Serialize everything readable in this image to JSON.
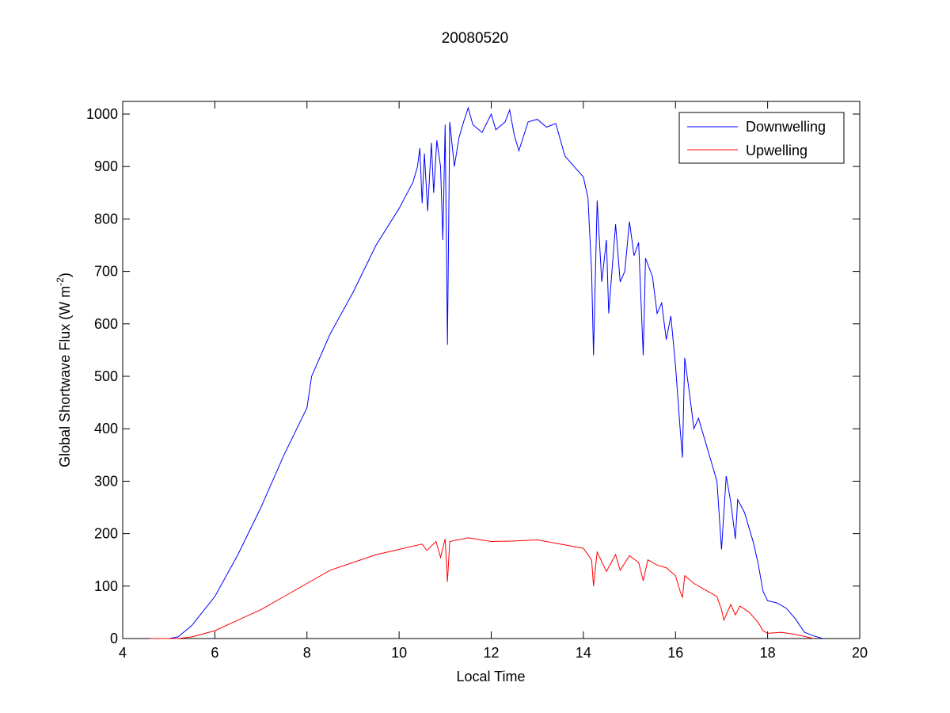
{
  "chart_data": {
    "type": "line",
    "title": "20080520",
    "xlabel": "Local Time",
    "ylabel": "Global Shortwave Flux (W m",
    "ylabel_sup": "-2",
    "ylabel_end": ")",
    "xlim": [
      4,
      20
    ],
    "ylim": [
      0,
      1020
    ],
    "xticks": [
      4,
      6,
      8,
      10,
      12,
      14,
      16,
      18,
      20
    ],
    "yticks": [
      0,
      100,
      200,
      300,
      400,
      500,
      600,
      700,
      800,
      900,
      1000
    ],
    "grid": false,
    "legend_position": "top-right",
    "series": [
      {
        "name": "Downwelling",
        "color": "#0000ff",
        "points": [
          [
            4.6,
            0
          ],
          [
            5.0,
            0
          ],
          [
            5.2,
            3
          ],
          [
            5.5,
            25
          ],
          [
            6.0,
            80
          ],
          [
            6.5,
            160
          ],
          [
            7.0,
            250
          ],
          [
            7.5,
            350
          ],
          [
            8.0,
            440
          ],
          [
            8.1,
            500
          ],
          [
            8.2,
            520
          ],
          [
            8.5,
            580
          ],
          [
            9.0,
            660
          ],
          [
            9.5,
            750
          ],
          [
            10.0,
            820
          ],
          [
            10.3,
            870
          ],
          [
            10.4,
            900
          ],
          [
            10.45,
            935
          ],
          [
            10.5,
            830
          ],
          [
            10.55,
            925
          ],
          [
            10.62,
            815
          ],
          [
            10.7,
            945
          ],
          [
            10.75,
            850
          ],
          [
            10.82,
            950
          ],
          [
            10.9,
            900
          ],
          [
            10.95,
            760
          ],
          [
            11.0,
            980
          ],
          [
            11.05,
            560
          ],
          [
            11.1,
            985
          ],
          [
            11.2,
            900
          ],
          [
            11.3,
            955
          ],
          [
            11.4,
            985
          ],
          [
            11.5,
            1012
          ],
          [
            11.6,
            980
          ],
          [
            11.8,
            965
          ],
          [
            12.0,
            1000
          ],
          [
            12.1,
            970
          ],
          [
            12.3,
            985
          ],
          [
            12.4,
            1008
          ],
          [
            12.5,
            960
          ],
          [
            12.6,
            930
          ],
          [
            12.8,
            985
          ],
          [
            13.0,
            990
          ],
          [
            13.2,
            975
          ],
          [
            13.4,
            982
          ],
          [
            13.6,
            920
          ],
          [
            13.8,
            900
          ],
          [
            14.0,
            880
          ],
          [
            14.1,
            840
          ],
          [
            14.18,
            700
          ],
          [
            14.22,
            540
          ],
          [
            14.3,
            835
          ],
          [
            14.4,
            680
          ],
          [
            14.5,
            760
          ],
          [
            14.55,
            620
          ],
          [
            14.7,
            790
          ],
          [
            14.8,
            680
          ],
          [
            14.9,
            700
          ],
          [
            15.0,
            795
          ],
          [
            15.1,
            730
          ],
          [
            15.2,
            755
          ],
          [
            15.3,
            540
          ],
          [
            15.35,
            725
          ],
          [
            15.5,
            690
          ],
          [
            15.6,
            620
          ],
          [
            15.7,
            640
          ],
          [
            15.8,
            570
          ],
          [
            15.9,
            615
          ],
          [
            16.0,
            520
          ],
          [
            16.1,
            400
          ],
          [
            16.15,
            345
          ],
          [
            16.2,
            535
          ],
          [
            16.3,
            470
          ],
          [
            16.4,
            400
          ],
          [
            16.5,
            420
          ],
          [
            16.7,
            360
          ],
          [
            16.8,
            330
          ],
          [
            16.9,
            300
          ],
          [
            17.0,
            170
          ],
          [
            17.1,
            310
          ],
          [
            17.2,
            260
          ],
          [
            17.3,
            190
          ],
          [
            17.35,
            265
          ],
          [
            17.5,
            240
          ],
          [
            17.7,
            180
          ],
          [
            17.8,
            140
          ],
          [
            17.9,
            90
          ],
          [
            18.0,
            72
          ],
          [
            18.2,
            68
          ],
          [
            18.4,
            58
          ],
          [
            18.6,
            38
          ],
          [
            18.8,
            12
          ],
          [
            19.0,
            5
          ],
          [
            19.2,
            0
          ]
        ]
      },
      {
        "name": "Upwelling",
        "color": "#ff0000",
        "points": [
          [
            4.6,
            0
          ],
          [
            5.2,
            0
          ],
          [
            5.5,
            3
          ],
          [
            6.0,
            15
          ],
          [
            6.5,
            35
          ],
          [
            7.0,
            55
          ],
          [
            7.5,
            80
          ],
          [
            8.0,
            105
          ],
          [
            8.5,
            130
          ],
          [
            9.0,
            145
          ],
          [
            9.5,
            160
          ],
          [
            10.0,
            170
          ],
          [
            10.5,
            180
          ],
          [
            10.6,
            168
          ],
          [
            10.8,
            185
          ],
          [
            10.9,
            155
          ],
          [
            11.0,
            190
          ],
          [
            11.05,
            108
          ],
          [
            11.1,
            185
          ],
          [
            11.5,
            192
          ],
          [
            12.0,
            185
          ],
          [
            12.5,
            186
          ],
          [
            13.0,
            188
          ],
          [
            13.5,
            180
          ],
          [
            14.0,
            172
          ],
          [
            14.18,
            150
          ],
          [
            14.22,
            100
          ],
          [
            14.3,
            165
          ],
          [
            14.5,
            128
          ],
          [
            14.7,
            160
          ],
          [
            14.8,
            130
          ],
          [
            15.0,
            158
          ],
          [
            15.2,
            145
          ],
          [
            15.3,
            110
          ],
          [
            15.4,
            150
          ],
          [
            15.6,
            140
          ],
          [
            15.8,
            135
          ],
          [
            16.0,
            120
          ],
          [
            16.1,
            90
          ],
          [
            16.15,
            78
          ],
          [
            16.2,
            120
          ],
          [
            16.4,
            105
          ],
          [
            16.6,
            95
          ],
          [
            16.9,
            80
          ],
          [
            17.0,
            55
          ],
          [
            17.05,
            35
          ],
          [
            17.2,
            65
          ],
          [
            17.3,
            45
          ],
          [
            17.4,
            62
          ],
          [
            17.6,
            50
          ],
          [
            17.8,
            30
          ],
          [
            17.9,
            15
          ],
          [
            18.0,
            10
          ],
          [
            18.3,
            12
          ],
          [
            18.6,
            8
          ],
          [
            19.0,
            0
          ]
        ]
      }
    ]
  }
}
